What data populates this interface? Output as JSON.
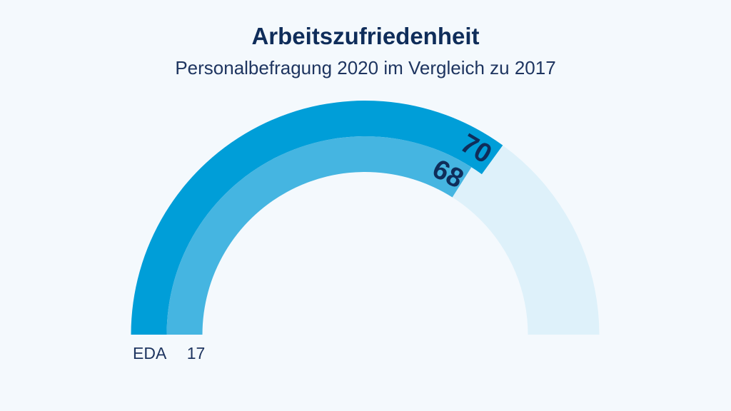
{
  "chart_data": {
    "type": "gauge",
    "title": "Arbeitszufriedenheit",
    "subtitle": "Personalbefragung 2020 im Vergleich zu 2017",
    "range": [
      0,
      100
    ],
    "series": [
      {
        "value": 70,
        "label": "70",
        "color": "#009ed8"
      },
      {
        "value": 68,
        "label": "68",
        "color": "#45b5e1"
      }
    ],
    "track_color": "#def1fa",
    "legend": {
      "org": "EDA",
      "year": "17"
    }
  }
}
